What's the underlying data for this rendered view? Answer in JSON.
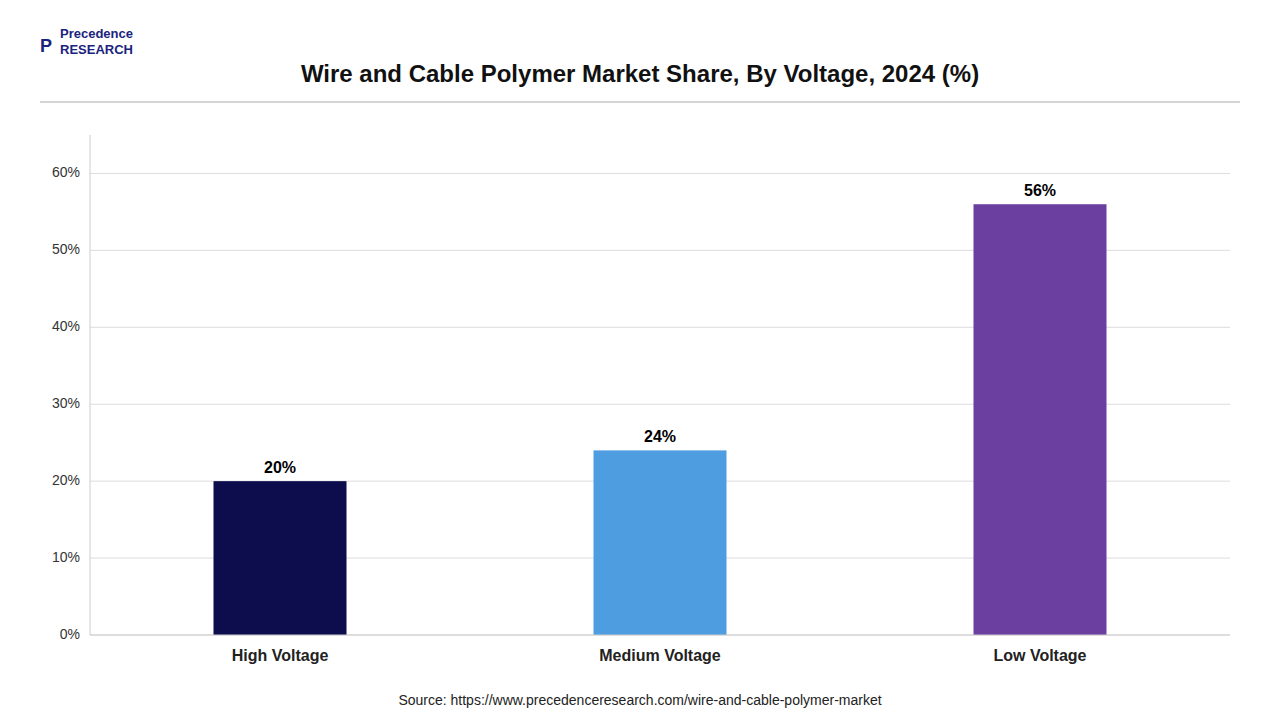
{
  "chart_data": {
    "type": "bar",
    "title": "Wire and Cable Polymer Market Share, By Voltage, 2024 (%)",
    "categories": [
      "High Voltage",
      "Medium Voltage",
      "Low Voltage"
    ],
    "values": [
      20,
      24,
      56
    ],
    "value_labels": [
      "20%",
      "24%",
      "56%"
    ],
    "data_labels": true,
    "colors": [
      "#0d0d4d",
      "#4d9de0",
      "#6b3fa0"
    ],
    "ylim": [
      0,
      65
    ],
    "yticks": [
      {
        "value": 0,
        "label": "0%"
      },
      {
        "value": 10,
        "label": "10%"
      },
      {
        "value": 20,
        "label": "20%"
      },
      {
        "value": 30,
        "label": "30%"
      },
      {
        "value": 40,
        "label": "40%"
      },
      {
        "value": 50,
        "label": "50%"
      },
      {
        "value": 60,
        "label": "60%"
      }
    ],
    "grid": true,
    "annotations": [
      "P",
      "Precedence\nRESEARCH",
      "Source: https://www.precedenceresearch.com/wire-and-cable-polymer-market"
    ]
  }
}
